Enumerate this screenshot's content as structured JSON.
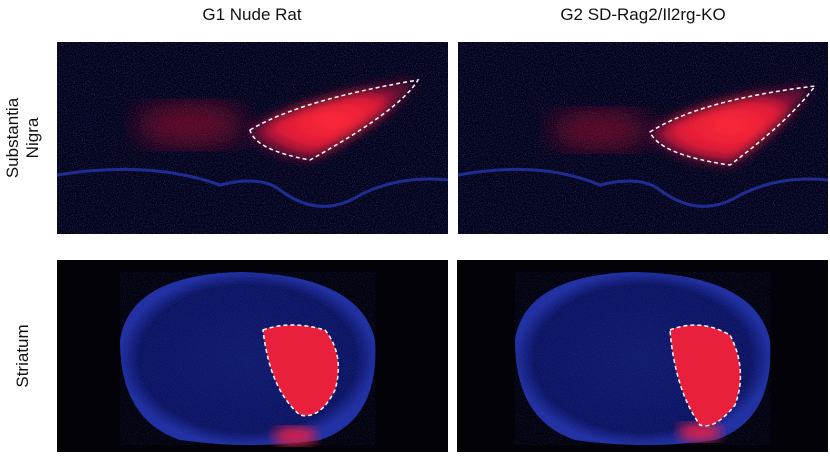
{
  "columns": [
    "G1 Nude Rat",
    "G2 SD-Rag2/Il2rg-KO"
  ],
  "rows": [
    [
      "Substantia",
      "Nigra"
    ],
    [
      "Striatum"
    ]
  ]
}
